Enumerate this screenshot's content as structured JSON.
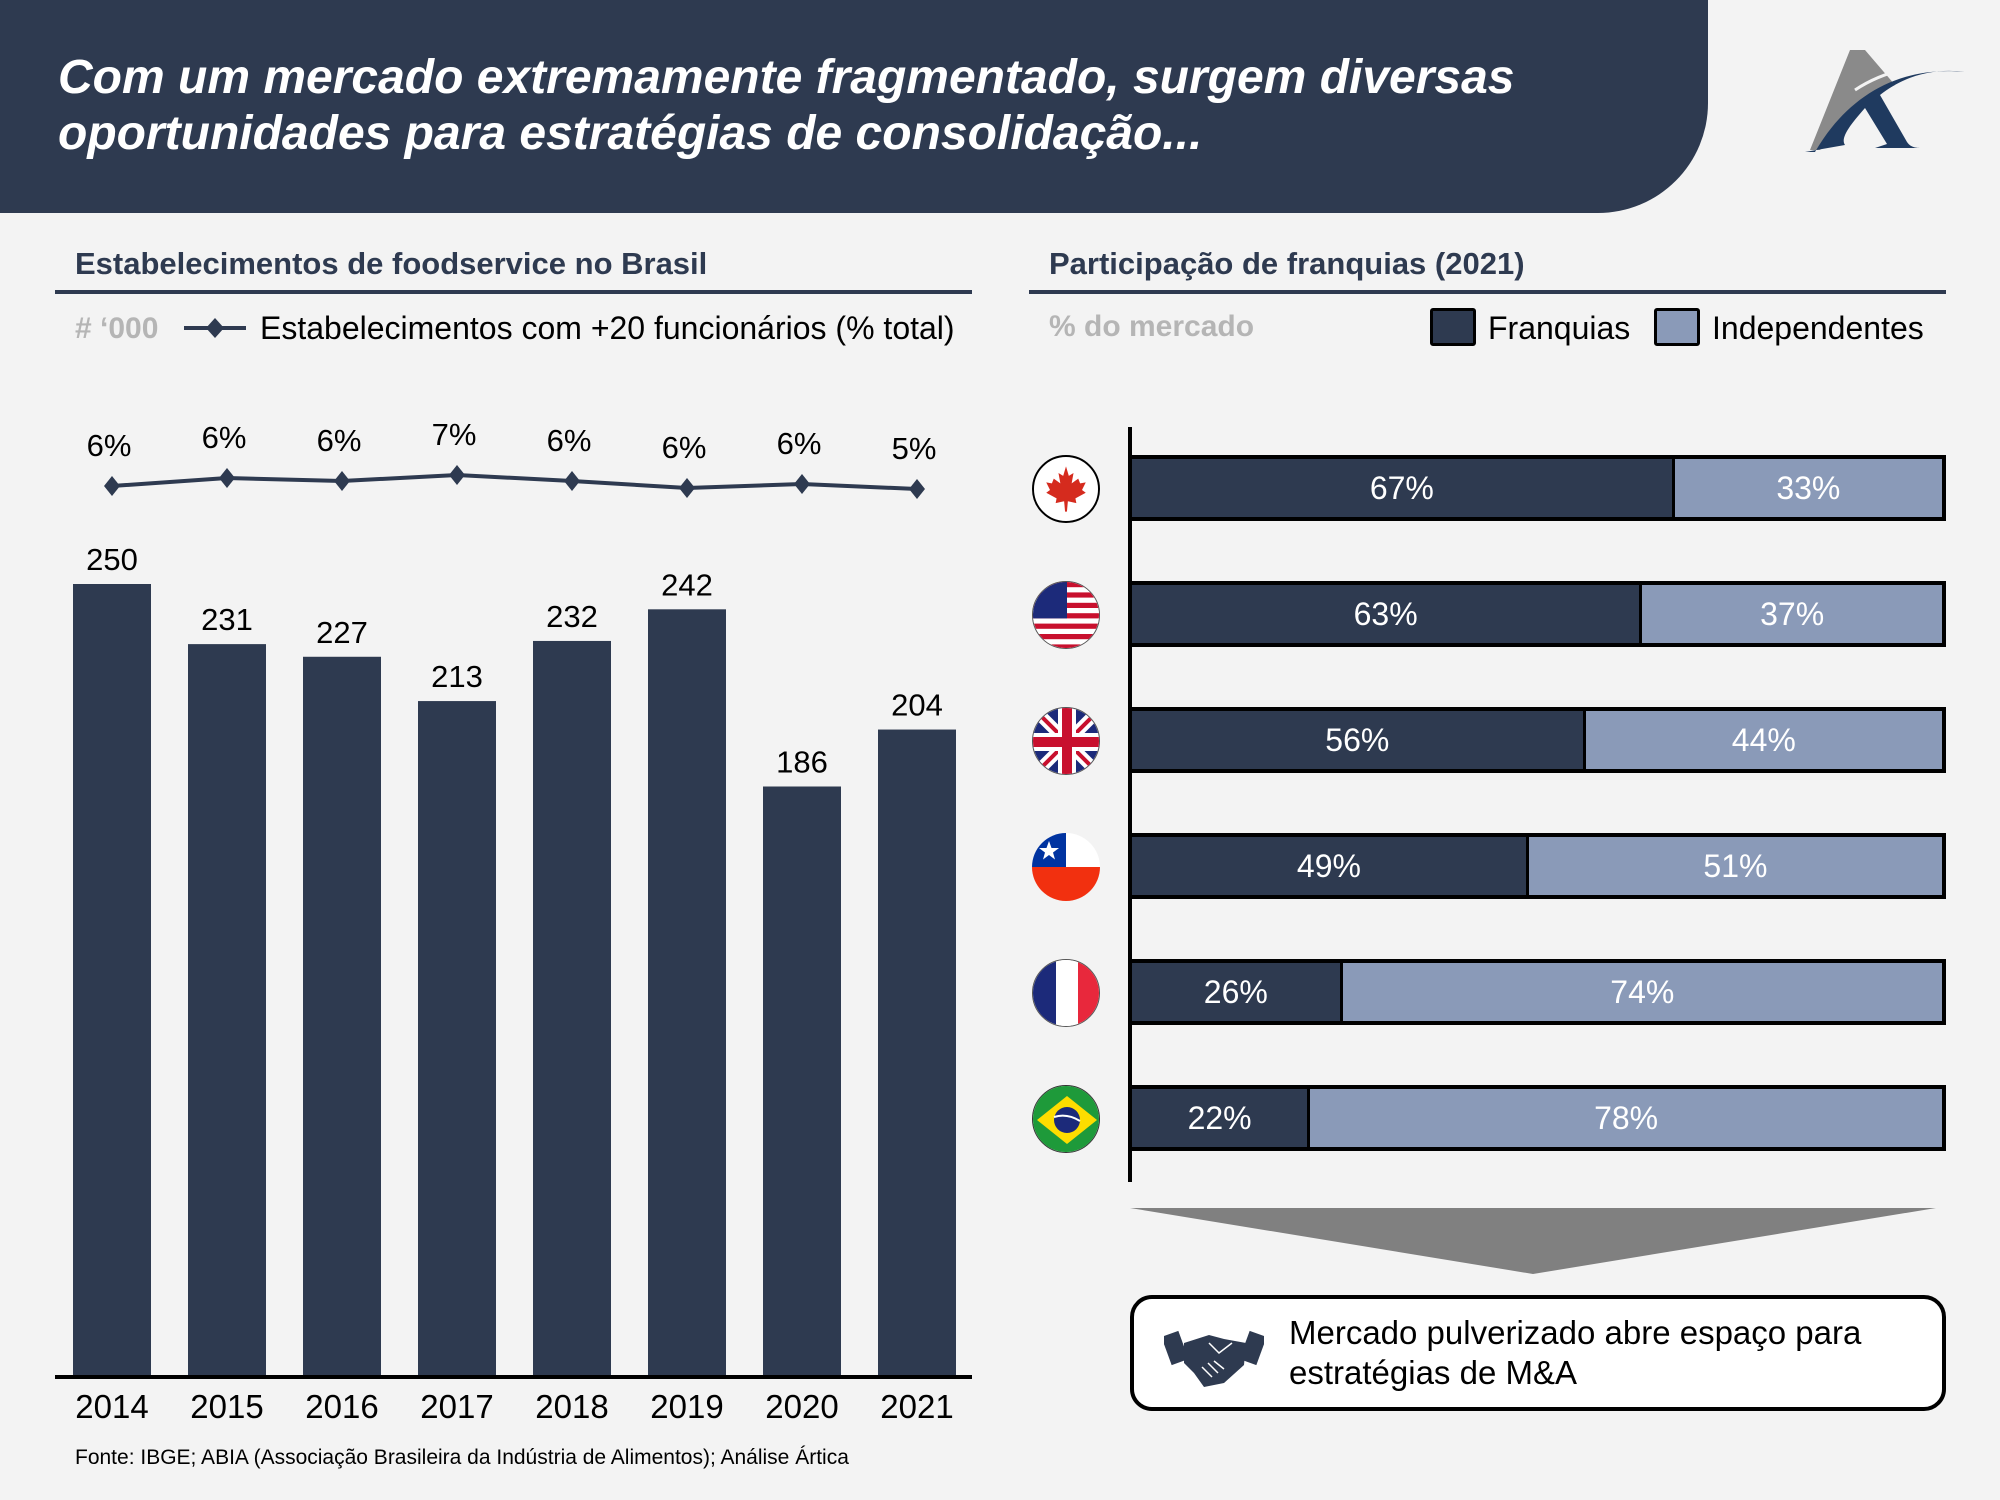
{
  "header": {
    "title_line1": "Com um mercado extremamente fragmentado, surgem diversas",
    "title_line2": "oportunidades para estratégias de consolidação...",
    "logo": "artica-a-logo",
    "colors": {
      "banner": "#2e3a50",
      "logo_navy": "#1f3a5f",
      "logo_grey": "#8a8a8a"
    }
  },
  "left_panel": {
    "title": "Estabelecimentos de foodservice no Brasil",
    "unit": "# ‘000",
    "legend_line": "Estabelecimentos com +20 funcionários (% total)"
  },
  "right_panel": {
    "title": "Participação de franquias (2021)",
    "unit": "% do mercado",
    "legend": [
      {
        "label": "Franquias",
        "color": "#2e3a50"
      },
      {
        "label": "Independentes",
        "color": "#8a9ab8"
      }
    ]
  },
  "chart_data": [
    {
      "type": "bar",
      "title": "Estabelecimentos de foodservice no Brasil",
      "ylabel": "# '000",
      "categories": [
        "2014",
        "2015",
        "2016",
        "2017",
        "2018",
        "2019",
        "2020",
        "2021"
      ],
      "values": [
        250,
        231,
        227,
        213,
        232,
        242,
        186,
        204
      ],
      "bar_color": "#2e3a50",
      "ylim": [
        0,
        260
      ],
      "grid": false,
      "overlay_line": {
        "name": "Estabelecimentos com +20 funcionários (% total)",
        "values": [
          6,
          6,
          6,
          7,
          6,
          6,
          6,
          5
        ],
        "labels": [
          "6%",
          "6%",
          "6%",
          "7%",
          "6%",
          "6%",
          "6%",
          "5%"
        ],
        "color": "#2e3a50",
        "marker": "diamond"
      }
    },
    {
      "type": "bar",
      "orientation": "horizontal-stacked-100",
      "title": "Participação de franquias (2021)",
      "xlabel": "% do mercado",
      "categories": [
        "Canadá",
        "EUA",
        "Reino Unido",
        "Chile",
        "França",
        "Brasil"
      ],
      "category_icons": [
        "canada-flag-icon",
        "usa-flag-icon",
        "uk-flag-icon",
        "chile-flag-icon",
        "france-flag-icon",
        "brazil-flag-icon"
      ],
      "series": [
        {
          "name": "Franquias",
          "values": [
            67,
            63,
            56,
            49,
            26,
            22
          ],
          "labels": [
            "67%",
            "63%",
            "56%",
            "49%",
            "26%",
            "22%"
          ],
          "color": "#2e3a50"
        },
        {
          "name": "Independentes",
          "values": [
            33,
            37,
            44,
            51,
            74,
            78
          ],
          "labels": [
            "33%",
            "37%",
            "44%",
            "51%",
            "74%",
            "78%"
          ],
          "color": "#8a9ab8"
        }
      ],
      "legend_position": "top-right"
    }
  ],
  "callout": {
    "text_line1": "Mercado pulverizado abre espaço para",
    "text_line2": "estratégias de M&A",
    "icon": "handshake-icon"
  },
  "source": "Fonte: IBGE; ABIA (Associação Brasileira da Indústria de Alimentos); Análise Ártica"
}
